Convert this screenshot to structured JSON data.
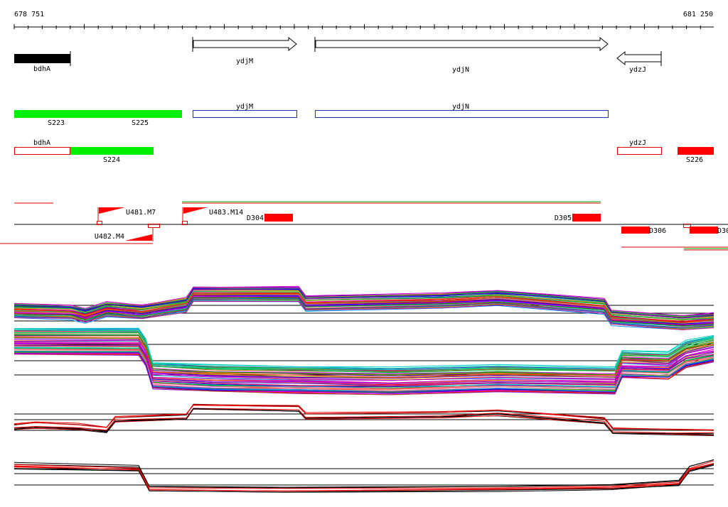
{
  "coordinates": {
    "start": "678 751",
    "end": "681 250"
  },
  "colors": {
    "gene": "#000000",
    "segment_green": "#00ee00",
    "segment_red": "#ff0000",
    "outline_blue": "#2233aa",
    "outline_red": "#dd0000",
    "track_black": "#000000",
    "track_red": "#ee0000"
  },
  "genes": [
    {
      "label": "bdhA",
      "style": "solid-black"
    },
    {
      "label": "ydjM",
      "style": "arrow-right"
    },
    {
      "label": "ydjN",
      "style": "arrow-right"
    },
    {
      "label": "ydzJ",
      "style": "arrow-left"
    }
  ],
  "segments_row1": [
    {
      "label": "S223",
      "style": "green"
    },
    {
      "label": "S225",
      "style": "green"
    },
    {
      "label": "ydjM",
      "style": "blue-outline"
    },
    {
      "label": "ydjN",
      "style": "blue-outline"
    }
  ],
  "segments_row2": [
    {
      "label": "bdhA",
      "style": "red-outline"
    },
    {
      "label": "S224",
      "style": "green"
    },
    {
      "label": "ydzJ",
      "style": "red-outline"
    },
    {
      "label": "S226",
      "style": "red"
    }
  ],
  "features": [
    {
      "label": "U481.M7",
      "style": "promoter"
    },
    {
      "label": "U483.M14",
      "style": "promoter"
    },
    {
      "label": "U482.M4",
      "style": "promoter-reverse"
    },
    {
      "label": "D304",
      "style": "red-box"
    },
    {
      "label": "D305",
      "style": "red-box"
    },
    {
      "label": "D306",
      "style": "red-box"
    },
    {
      "label": "D30",
      "style": "red-box"
    }
  ],
  "profile_colors": [
    "#ff0000",
    "#00aa00",
    "#0000ff",
    "#ff00ff",
    "#00cccc",
    "#ffaa00",
    "#8800ff",
    "#008800",
    "#ff6699",
    "#66cc00",
    "#0088ff",
    "#aa5500",
    "#cc00cc",
    "#00ddaa",
    "#999900",
    "#3333cc",
    "#ff3300",
    "#00bb55",
    "#dd0088",
    "#5500aa"
  ]
}
